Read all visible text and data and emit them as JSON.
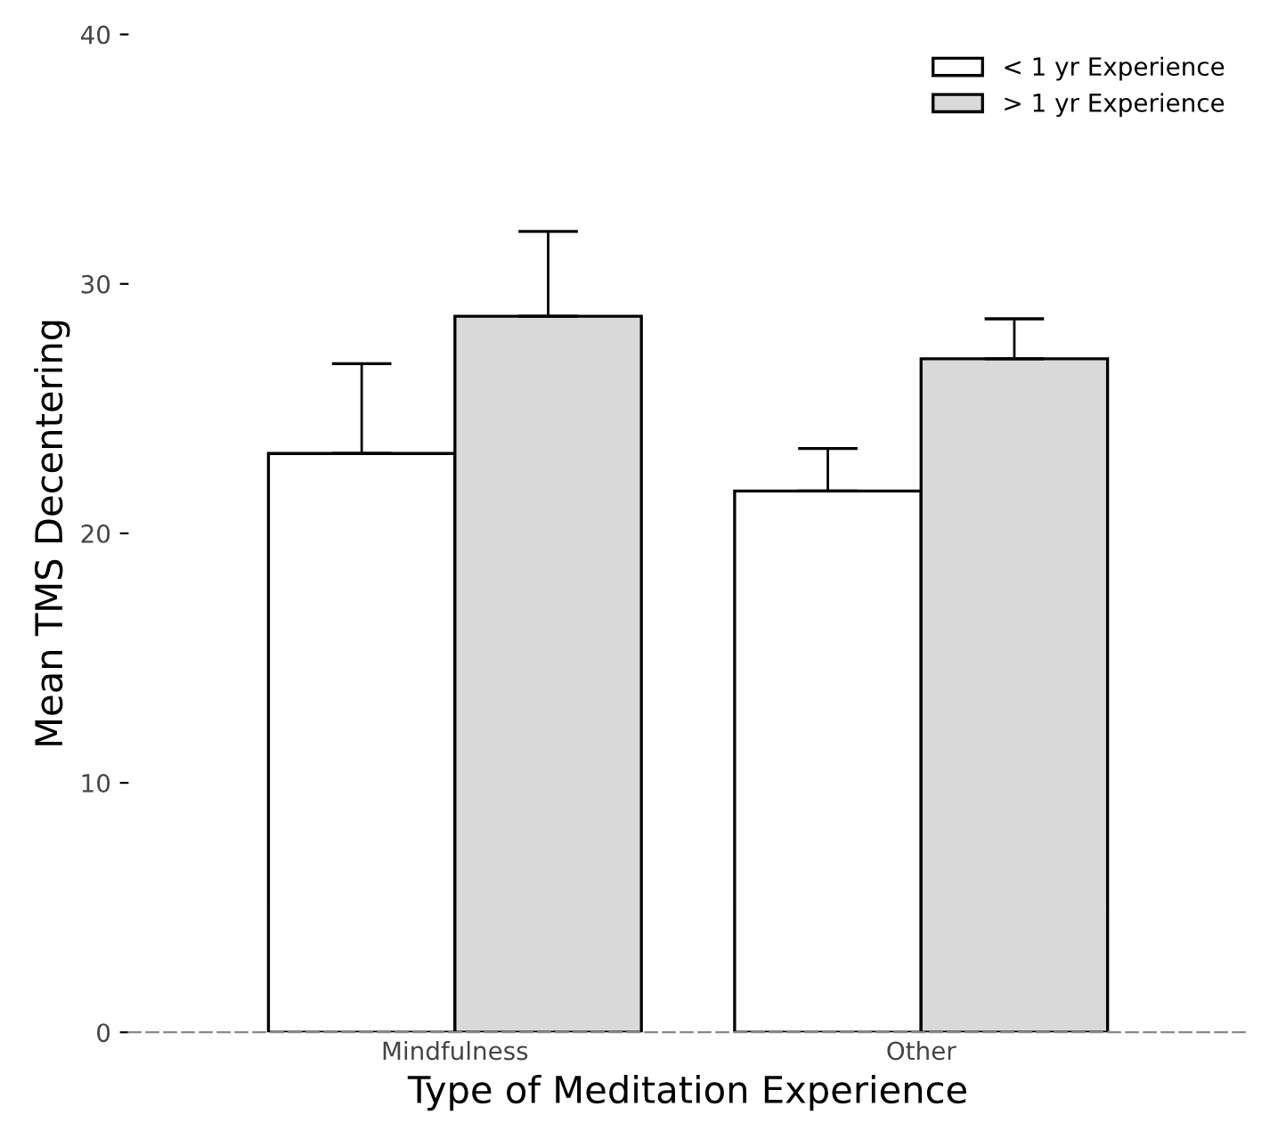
{
  "chart_data": {
    "type": "bar",
    "xlabel": "Type of Meditation Experience",
    "ylabel": "Mean TMS Decentering",
    "categories": [
      "Mindfulness",
      "Other"
    ],
    "series": [
      {
        "name": "< 1 yr Experience",
        "color": "#ffffff",
        "values": [
          23.2,
          21.7
        ],
        "errors": [
          [
            23.2,
            26.8
          ],
          [
            21.7,
            23.4
          ]
        ]
      },
      {
        "name": "> 1 yr Experience",
        "color": "#d9d9d9",
        "values": [
          28.7,
          27.0
        ],
        "errors": [
          [
            28.7,
            32.1
          ],
          [
            27.0,
            28.6
          ]
        ]
      }
    ],
    "ylim": [
      0,
      40
    ],
    "yticks": [
      0,
      10,
      20,
      30,
      40
    ],
    "grid": false,
    "legend": "top right"
  }
}
